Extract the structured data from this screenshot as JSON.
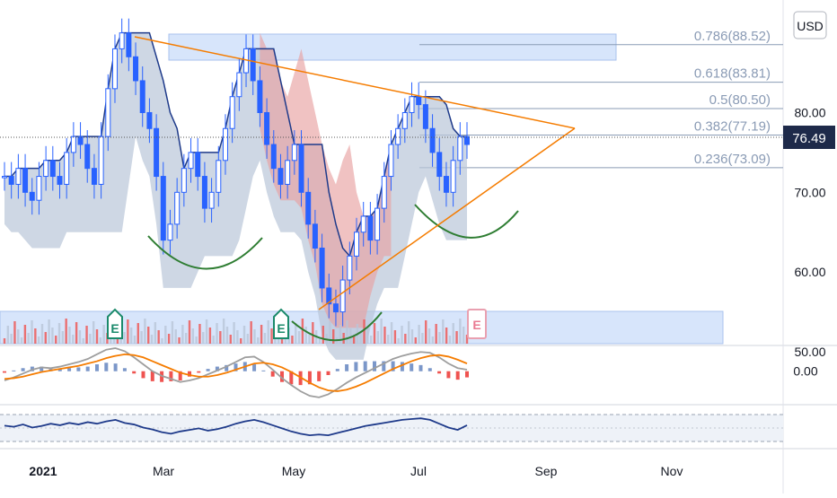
{
  "currency_button": "USD",
  "current_price_label": "76.49",
  "colors": {
    "up": "#26a69a",
    "down": "#ef5350",
    "candle": "#2962ff",
    "trendline": "#f57c00",
    "fib_fill": "#d7e5fb",
    "fib_line": "#8a9bb5",
    "cloud_blue": "#b9c6d8",
    "cloud_red": "#e8a2a2",
    "arc": "#2e7d32",
    "macd_line": "#9e9e9e",
    "signal_line": "#f57c00",
    "rsi_line": "#1e3a8a",
    "earnings": "#1b8a6b"
  },
  "earnings_markers": [
    "E",
    "E",
    "E"
  ],
  "chart_data": [
    {
      "type": "candlestick",
      "ylim": [
        50,
        93
      ],
      "y_ticks": [
        "80.00",
        "70.00",
        "60.00",
        "50.00"
      ],
      "x_ticks": [
        "2021",
        "Mar",
        "May",
        "Jul",
        "Sep",
        "Nov"
      ],
      "fibonacci_levels": [
        {
          "label": "0.786(88.52)",
          "value": 88.52
        },
        {
          "label": "0.618(83.81)",
          "value": 83.81
        },
        {
          "label": "0.5(80.50)",
          "value": 80.5
        },
        {
          "label": "0.382(77.19)",
          "value": 77.19
        },
        {
          "label": "0.236(73.09)",
          "value": 73.09
        }
      ],
      "last_price": 76.49,
      "series": [
        {
          "values": [
            72,
            71,
            73,
            70,
            69,
            72,
            74,
            72,
            71,
            75,
            77,
            76,
            73,
            71,
            77,
            83,
            88,
            90,
            87,
            84,
            80,
            78,
            72,
            64,
            66,
            70,
            73,
            75,
            72,
            68,
            70,
            74,
            78,
            82,
            85,
            88,
            84,
            80,
            76,
            73,
            71,
            74,
            76,
            70,
            66,
            63,
            58,
            56,
            55,
            59,
            62,
            65,
            67,
            64,
            68,
            72,
            76,
            78,
            80,
            82,
            81,
            78,
            75,
            72,
            70,
            74,
            77,
            76
          ]
        }
      ]
    },
    {
      "type": "line",
      "ylim": [
        -4,
        3
      ],
      "y_ticks": [
        "0.00"
      ],
      "series": [
        {
          "values": [
            -1.2,
            -0.8,
            -0.3,
            0.2,
            0.5,
            0.4,
            0.6,
            0.9,
            1.2,
            1.6,
            2.2,
            2.8,
            3.0,
            2.6,
            1.8,
            0.9,
            0.0,
            -0.6,
            -1.0,
            -1.4,
            -1.2,
            -0.9,
            -0.4,
            0.1,
            0.6,
            1.2,
            1.8,
            1.9,
            1.2,
            0.2,
            -0.9,
            -1.8,
            -2.6,
            -3.2,
            -3.4,
            -3.0,
            -2.3,
            -1.5,
            -0.8,
            -0.2,
            0.4,
            1.0,
            1.6,
            2.0,
            2.3,
            2.5,
            2.4,
            1.8,
            1.0,
            0.4,
            0.2
          ]
        },
        {
          "values": [
            -1.0,
            -0.9,
            -0.7,
            -0.4,
            -0.1,
            0.1,
            0.3,
            0.5,
            0.7,
            1.0,
            1.3,
            1.7,
            2.0,
            2.2,
            2.1,
            1.8,
            1.3,
            0.8,
            0.3,
            -0.2,
            -0.5,
            -0.7,
            -0.7,
            -0.5,
            -0.2,
            0.2,
            0.6,
            1.0,
            1.1,
            0.9,
            0.5,
            -0.1,
            -0.8,
            -1.5,
            -2.1,
            -2.5,
            -2.6,
            -2.4,
            -2.0,
            -1.5,
            -0.9,
            -0.3,
            0.3,
            0.8,
            1.3,
            1.7,
            2.0,
            2.1,
            1.9,
            1.5,
            1.0
          ]
        }
      ]
    },
    {
      "type": "line",
      "ylim": [
        0,
        100
      ],
      "series": [
        {
          "values": [
            55,
            52,
            58,
            50,
            54,
            60,
            56,
            62,
            58,
            64,
            60,
            66,
            70,
            62,
            58,
            50,
            45,
            38,
            34,
            40,
            44,
            48,
            42,
            46,
            52,
            60,
            66,
            70,
            64,
            56,
            48,
            40,
            34,
            30,
            32,
            30,
            36,
            42,
            48,
            54,
            58,
            62,
            66,
            70,
            72,
            74,
            70,
            60,
            50,
            44,
            56
          ]
        }
      ]
    }
  ]
}
